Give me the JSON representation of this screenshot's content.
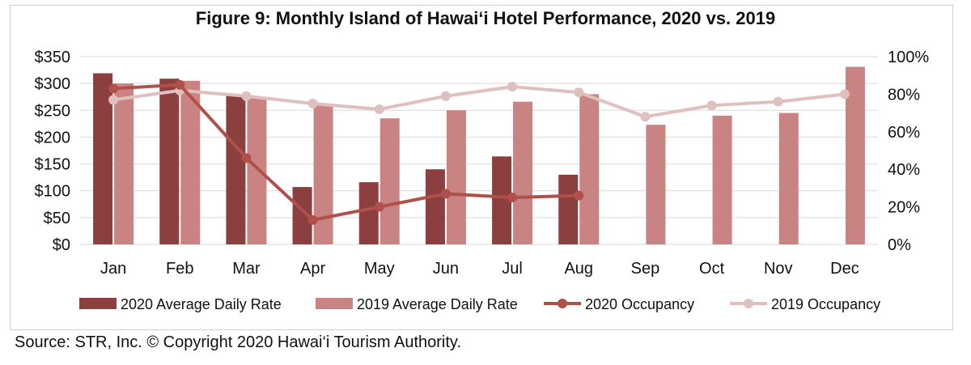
{
  "chart_data": {
    "type": "bar",
    "title": "Figure 9: Monthly Island of Hawai‘i Hotel Performance, 2020 vs. 2019",
    "categories": [
      "Jan",
      "Feb",
      "Mar",
      "Apr",
      "May",
      "Jun",
      "Jul",
      "Aug",
      "Sep",
      "Oct",
      "Nov",
      "Dec"
    ],
    "series": [
      {
        "name": "2020 Average Daily Rate",
        "kind": "bar",
        "axis": "left",
        "values": [
          319,
          309,
          277,
          107,
          116,
          140,
          164,
          130,
          null,
          null,
          null,
          null
        ]
      },
      {
        "name": "2019 Average Daily Rate",
        "kind": "bar",
        "axis": "left",
        "values": [
          300,
          305,
          272,
          260,
          235,
          250,
          266,
          280,
          223,
          240,
          245,
          331
        ]
      },
      {
        "name": "2020 Occupancy",
        "kind": "line",
        "axis": "right",
        "values": [
          83,
          85,
          46,
          13,
          20,
          27,
          25,
          26,
          null,
          null,
          null,
          null
        ]
      },
      {
        "name": "2019 Occupancy",
        "kind": "line",
        "axis": "right",
        "values": [
          77,
          82,
          79,
          75,
          72,
          79,
          84,
          81,
          68,
          74,
          76,
          80
        ]
      }
    ],
    "y_left": {
      "ylim": [
        0,
        350
      ],
      "ticks": [
        "$0",
        "$50",
        "$100",
        "$150",
        "$200",
        "$250",
        "$300",
        "$350"
      ]
    },
    "y_right": {
      "ylim": [
        0,
        100
      ],
      "ticks": [
        "0%",
        "20%",
        "40%",
        "60%",
        "80%",
        "100%"
      ]
    },
    "grid": true,
    "legend_position": "bottom",
    "colors": {
      "bar_2020": "#8b3f3f",
      "bar_2019": "#c98383",
      "line_2020": "#b0504a",
      "line_2019": "#dfc0be",
      "grid": "#d9d9d9"
    }
  },
  "source": "Source: STR, Inc. © Copyright 2020 Hawai‘i Tourism Authority."
}
